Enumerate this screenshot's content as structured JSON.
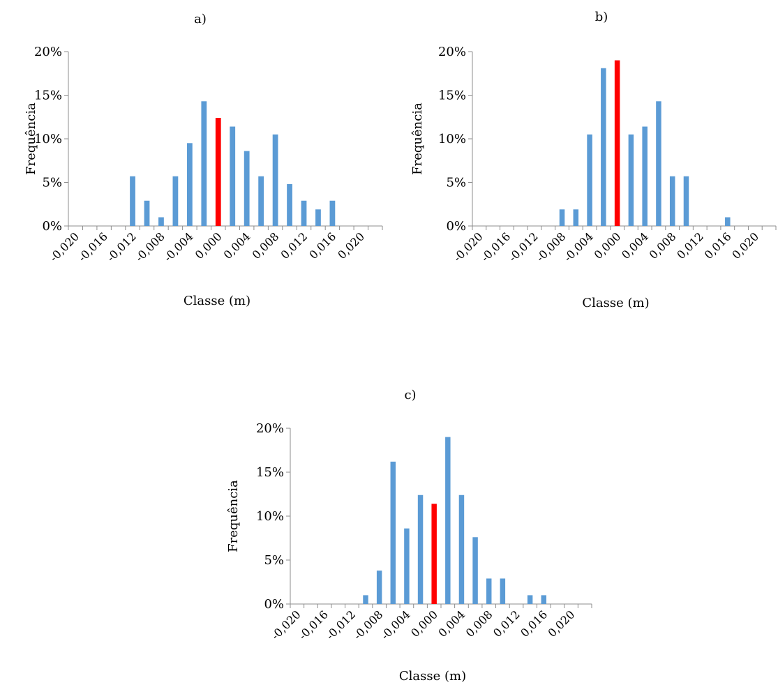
{
  "highlight_color": "#ff0000",
  "bar_color": "#5b9bd5",
  "chart_data": [
    {
      "type": "bar",
      "title": "a)",
      "xlabel": "Classe (m)",
      "ylabel": "Frequência",
      "ylim": [
        0,
        20
      ],
      "yticks": [
        "0%",
        "5%",
        "10%",
        "15%",
        "20%"
      ],
      "xticks": [
        "-0,020",
        "-0,016",
        "-0,012",
        "-0,008",
        "-0,004",
        "0,000",
        "0,004",
        "0,008",
        "0,012",
        "0,016",
        "0,020"
      ],
      "grid": false,
      "legend": "none",
      "values": [
        0,
        0,
        0,
        0,
        5.7,
        2.9,
        1.0,
        5.7,
        9.5,
        14.3,
        12.4,
        11.4,
        8.6,
        5.7,
        10.5,
        4.8,
        2.9,
        1.9,
        2.9,
        0,
        0,
        0
      ],
      "highlight_index": 10
    },
    {
      "type": "bar",
      "title": "b)",
      "xlabel": "Classe (m)",
      "ylabel": "Frequência",
      "ylim": [
        0,
        20
      ],
      "yticks": [
        "0%",
        "5%",
        "10%",
        "15%",
        "20%"
      ],
      "xticks": [
        "-0,020",
        "-0,016",
        "-0,012",
        "-0,008",
        "-0,004",
        "0,000",
        "0,004",
        "0,008",
        "0,012",
        "0,016",
        "0,020"
      ],
      "grid": false,
      "legend": "none",
      "values": [
        0,
        0,
        0,
        0,
        0,
        0,
        1.9,
        1.9,
        10.5,
        18.1,
        19.0,
        10.5,
        11.4,
        14.3,
        5.7,
        5.7,
        0,
        0,
        1.0,
        0,
        0,
        0
      ],
      "highlight_index": 10
    },
    {
      "type": "bar",
      "title": "c)",
      "xlabel": "Classe (m)",
      "ylabel": "Frequência",
      "ylim": [
        0,
        20
      ],
      "yticks": [
        "0%",
        "5%",
        "10%",
        "15%",
        "20%"
      ],
      "xticks": [
        "-0,020",
        "-0,016",
        "-0,012",
        "-0,008",
        "-0,004",
        "0,000",
        "0,004",
        "0,008",
        "0,012",
        "0,016",
        "0,020"
      ],
      "grid": false,
      "legend": "none",
      "values": [
        0,
        0,
        0,
        0,
        0,
        1.0,
        3.8,
        16.2,
        8.6,
        12.4,
        11.4,
        19.0,
        12.4,
        7.6,
        2.9,
        2.9,
        0,
        1.0,
        1.0,
        0,
        0,
        0
      ],
      "highlight_index": 10
    }
  ]
}
